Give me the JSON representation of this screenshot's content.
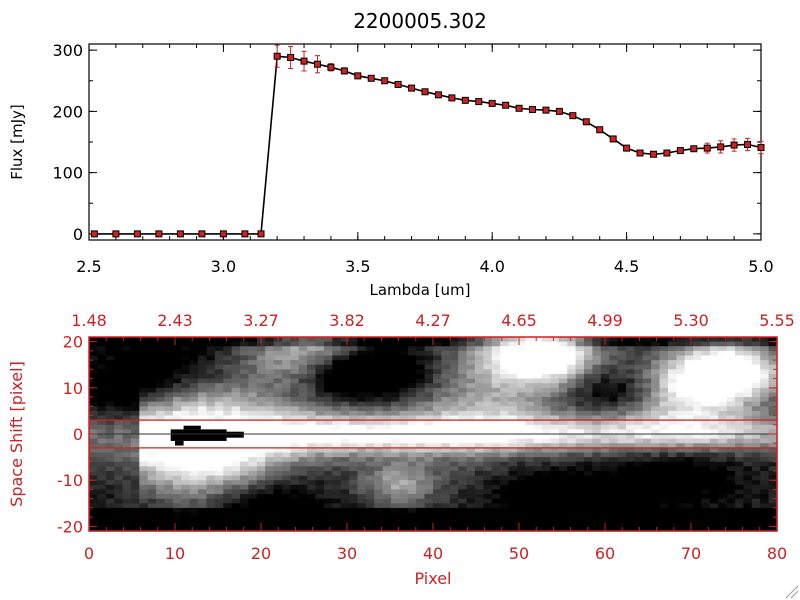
{
  "chart_data": [
    {
      "type": "line",
      "title": "2200005.302",
      "xlabel": "Lambda [um]",
      "ylabel": "Flux [mJy]",
      "xlim": [
        2.5,
        5.0
      ],
      "ylim": [
        -10,
        310
      ],
      "xticks": [
        "2.5",
        "3.0",
        "3.5",
        "4.0",
        "4.5",
        "5.0"
      ],
      "yticks": [
        "0",
        "100",
        "200",
        "300"
      ],
      "grid": false,
      "x": [
        2.52,
        2.6,
        2.68,
        2.76,
        2.84,
        2.92,
        3.0,
        3.08,
        3.14,
        3.2,
        3.25,
        3.3,
        3.35,
        3.4,
        3.45,
        3.5,
        3.55,
        3.6,
        3.65,
        3.7,
        3.75,
        3.8,
        3.85,
        3.9,
        3.95,
        4.0,
        4.05,
        4.1,
        4.15,
        4.2,
        4.25,
        4.3,
        4.35,
        4.4,
        4.45,
        4.5,
        4.55,
        4.6,
        4.65,
        4.7,
        4.75,
        4.8,
        4.85,
        4.9,
        4.95,
        5.0
      ],
      "y": [
        0,
        0,
        0,
        0,
        0,
        0,
        0,
        0,
        0,
        290,
        288,
        282,
        277,
        272,
        266,
        258,
        254,
        250,
        244,
        238,
        232,
        227,
        222,
        218,
        216,
        213,
        210,
        205,
        203,
        202,
        200,
        193,
        183,
        170,
        155,
        140,
        132,
        130,
        132,
        136,
        139,
        140,
        142,
        145,
        146,
        141
      ],
      "yerr": [
        0,
        0,
        0,
        0,
        0,
        0,
        0,
        0,
        0,
        18,
        18,
        16,
        14,
        6,
        5,
        4,
        4,
        4,
        4,
        4,
        4,
        4,
        4,
        4,
        4,
        4,
        4,
        4,
        4,
        4,
        4,
        4,
        4,
        4,
        4,
        4,
        4,
        4,
        4,
        4,
        4,
        8,
        10,
        10,
        10,
        10
      ],
      "colors": {
        "line": "#000000",
        "marker": "#cc2222",
        "errorbar": "#cc2222"
      }
    },
    {
      "type": "heatmap",
      "xlabel": "Pixel",
      "ylabel": "Space Shift [pixel]",
      "xlim": [
        0,
        80
      ],
      "ylim": [
        -21,
        21
      ],
      "xticks": [
        "0",
        "10",
        "20",
        "30",
        "40",
        "50",
        "60",
        "70",
        "80"
      ],
      "yticks": [
        "-20",
        "-10",
        "0",
        "10",
        "20"
      ],
      "top_axis_ticks": [
        "1.48",
        "2.43",
        "3.27",
        "3.82",
        "4.27",
        "4.65",
        "4.99",
        "5.30",
        "5.55"
      ],
      "extraction_window": [
        -3,
        3
      ],
      "colormap": "grayscale",
      "colors": {
        "axis": "#cc2222",
        "window": "#cc2222"
      }
    }
  ]
}
